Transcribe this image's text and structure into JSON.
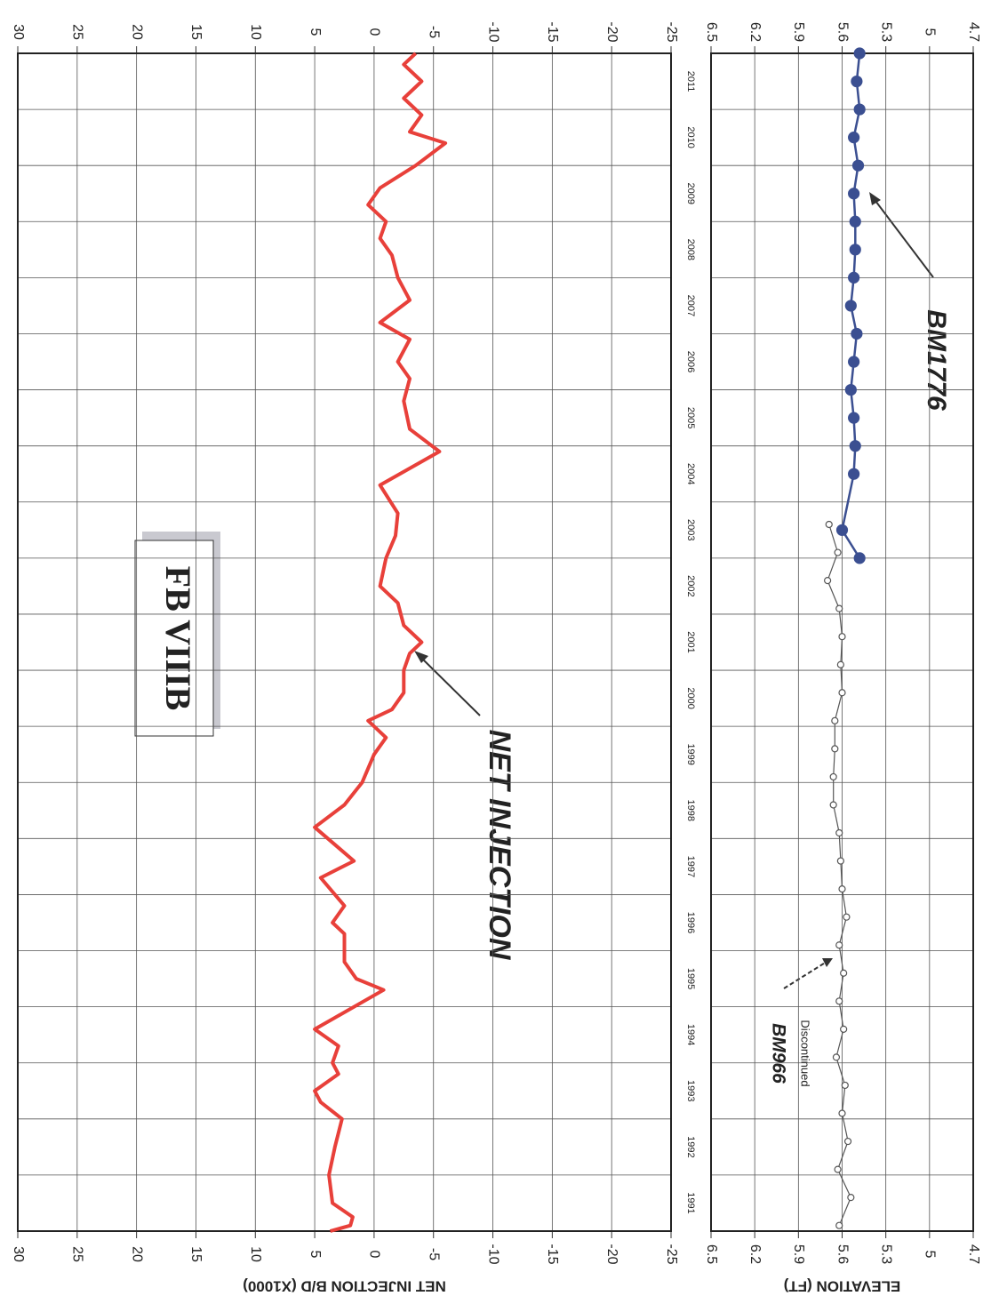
{
  "chart_data": [
    {
      "type": "line",
      "title": "FB VIIIB",
      "y_label": "NET INJECTION B/D (X1000)",
      "xlim": [
        1991,
        2012
      ],
      "x_labels": [
        "1991",
        "1992",
        "1993",
        "1994",
        "1995",
        "1996",
        "1997",
        "1998",
        "1999",
        "2000",
        "2001",
        "2002",
        "2003",
        "2004",
        "2005",
        "2006",
        "2007",
        "2008",
        "2009",
        "2010",
        "2011"
      ],
      "ylim": [
        -25,
        30
      ],
      "yticks": [
        30,
        25,
        20,
        15,
        10,
        5,
        0,
        -5,
        -10,
        -15,
        -20,
        -25
      ],
      "grid": true,
      "series": [
        {
          "name": "NET INJECTION",
          "color": "#e8403a",
          "x": [
            1991.0,
            1991.1,
            1991.25,
            1991.5,
            1992.0,
            1992.5,
            1993.0,
            1993.3,
            1993.5,
            1993.8,
            1994.0,
            1994.3,
            1994.6,
            1995.3,
            1995.5,
            1995.8,
            1996.3,
            1996.5,
            1996.8,
            1997.3,
            1997.6,
            1998.2,
            1998.6,
            1999.0,
            1999.5,
            1999.8,
            2000.1,
            2000.3,
            2000.6,
            2001.0,
            2001.3,
            2001.5,
            2001.8,
            2002.2,
            2002.5,
            2003.0,
            2003.4,
            2003.8,
            2004.3,
            2004.9,
            2005.3,
            2005.8,
            2006.2,
            2006.5,
            2006.9,
            2007.2,
            2007.6,
            2008.0,
            2008.4,
            2008.7,
            2009.0,
            2009.3,
            2009.6,
            2010.0,
            2010.4,
            2010.6,
            2010.9,
            2011.2,
            2011.5,
            2011.8,
            2012.0
          ],
          "values": [
            3.7,
            2.0,
            1.8,
            3.5,
            3.8,
            3.3,
            2.7,
            4.5,
            5.0,
            3.0,
            3.5,
            3.0,
            5.0,
            -0.8,
            1.5,
            2.5,
            2.5,
            3.5,
            2.5,
            4.5,
            1.7,
            5.0,
            2.5,
            1.0,
            0.0,
            -1.0,
            0.5,
            -1.5,
            -2.5,
            -2.5,
            -3.0,
            -4.0,
            -2.5,
            -2.0,
            -0.5,
            -1.0,
            -1.8,
            -2.0,
            -0.5,
            -5.5,
            -3.0,
            -2.5,
            -3.0,
            -2.0,
            -3.0,
            -0.5,
            -3.0,
            -2.0,
            -1.5,
            -0.5,
            -1.0,
            0.5,
            -0.5,
            -3.5,
            -6.0,
            -3.0,
            -4.0,
            -2.5,
            -4.0,
            -2.5,
            -3.5
          ]
        }
      ]
    },
    {
      "type": "line",
      "y_label": "ELEVATION (FT)",
      "xlim": [
        1991,
        2012
      ],
      "ylim": [
        4.7,
        6.5
      ],
      "yticks": [
        6.5,
        6.2,
        5.9,
        5.6,
        5.3,
        5,
        4.7
      ],
      "grid": true,
      "note": "Discontinued",
      "series": [
        {
          "name": "BM966",
          "color": "#555555",
          "marker": "hollow",
          "x": [
            1991.1,
            1991.6,
            1992.1,
            1992.6,
            1993.1,
            1993.6,
            1994.1,
            1994.6,
            1995.1,
            1995.6,
            1996.1,
            1996.6,
            1997.1,
            1997.6,
            1998.1,
            1998.6,
            1999.1,
            1999.6,
            2000.1,
            2000.6,
            2001.1,
            2001.6,
            2002.1,
            2002.6,
            2003.1,
            2003.6
          ],
          "values": [
            5.62,
            5.54,
            5.63,
            5.56,
            5.6,
            5.58,
            5.64,
            5.59,
            5.62,
            5.59,
            5.62,
            5.57,
            5.6,
            5.61,
            5.62,
            5.66,
            5.66,
            5.65,
            5.65,
            5.6,
            5.61,
            5.6,
            5.62,
            5.7,
            5.63,
            5.69
          ]
        },
        {
          "name": "BM1776",
          "color": "#3b4f91",
          "marker": "filled",
          "x": [
            2003.0,
            2003.5,
            2004.5,
            2005.0,
            2005.5,
            2006.0,
            2006.5,
            2007.0,
            2007.5,
            2008.0,
            2008.5,
            2009.0,
            2009.5,
            2010.0,
            2010.5,
            2011.0,
            2011.5,
            2012.0
          ],
          "values": [
            5.48,
            5.6,
            5.52,
            5.51,
            5.52,
            5.54,
            5.52,
            5.5,
            5.54,
            5.52,
            5.51,
            5.51,
            5.52,
            5.49,
            5.52,
            5.48,
            5.5,
            5.48
          ]
        }
      ]
    }
  ]
}
